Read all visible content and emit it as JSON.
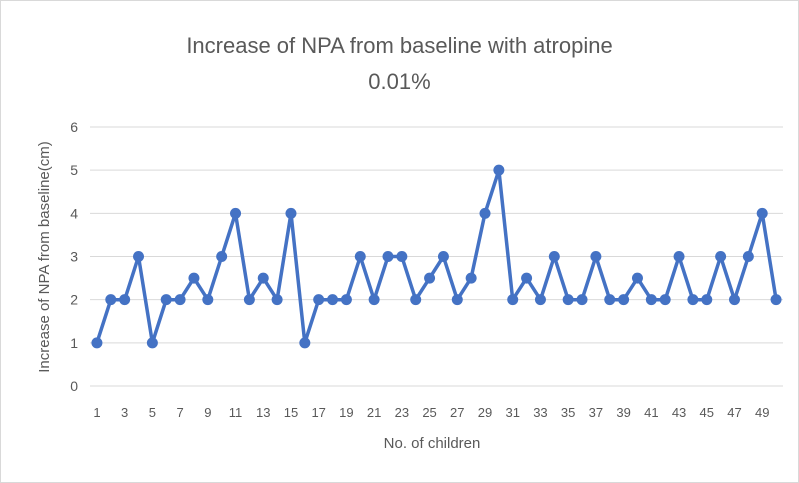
{
  "chart_data": {
    "type": "line",
    "title_line1": "Increase of NPA from baseline with atropine",
    "title_line2": "0.01%",
    "xlabel": "No. of children",
    "ylabel": "Increase of NPA from baseline(cm)",
    "ylim": [
      0,
      6
    ],
    "yticks": [
      0,
      1,
      2,
      3,
      4,
      5,
      6
    ],
    "x": [
      1,
      2,
      3,
      4,
      5,
      6,
      7,
      8,
      9,
      10,
      11,
      12,
      13,
      14,
      15,
      16,
      17,
      18,
      19,
      20,
      21,
      22,
      23,
      24,
      25,
      26,
      27,
      28,
      29,
      30,
      31,
      32,
      33,
      34,
      35,
      36,
      37,
      38,
      39,
      40,
      41,
      42,
      43,
      44,
      45,
      46,
      47,
      48,
      49,
      50
    ],
    "xtick_labels": [
      "1",
      "3",
      "5",
      "7",
      "9",
      "11",
      "13",
      "15",
      "17",
      "19",
      "21",
      "23",
      "25",
      "27",
      "29",
      "31",
      "33",
      "35",
      "37",
      "39",
      "41",
      "43",
      "45",
      "47",
      "49"
    ],
    "values": [
      1,
      2,
      2,
      3,
      1,
      2,
      2,
      2.5,
      2,
      3,
      4,
      2,
      2.5,
      2,
      4,
      1,
      2,
      2,
      2,
      3,
      2,
      3,
      3,
      2,
      2.5,
      3,
      2,
      2.5,
      4,
      5,
      2,
      2.5,
      2,
      3,
      2,
      2,
      3,
      2,
      2,
      2.5,
      2,
      2,
      3,
      2,
      2,
      3,
      2,
      3,
      4,
      2
    ],
    "grid": true,
    "line_color": "#4472c4",
    "grid_color": "#d9d9d9"
  }
}
